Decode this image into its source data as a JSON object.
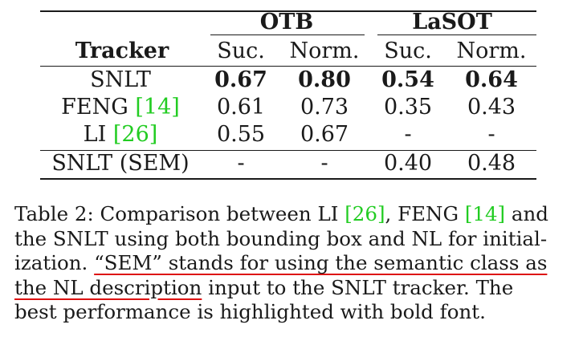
{
  "table": {
    "groups": [
      "OTB",
      "LaSOT"
    ],
    "col_header": "Tracker",
    "sub_headers": [
      "Suc.",
      "Norm.",
      "Suc.",
      "Norm."
    ],
    "rows": [
      {
        "tracker": "SNLT",
        "cite": "",
        "values": [
          "0.67",
          "0.80",
          "0.54",
          "0.64"
        ],
        "bold": true
      },
      {
        "tracker": "FENG",
        "cite": "[14]",
        "values": [
          "0.61",
          "0.73",
          "0.35",
          "0.43"
        ],
        "bold": false
      },
      {
        "tracker": "LI",
        "cite": "[26]",
        "values": [
          "0.55",
          "0.67",
          "-",
          "-"
        ],
        "bold": false
      },
      {
        "tracker": "SNLT (SEM)",
        "cite": "",
        "values": [
          "-",
          "-",
          "0.40",
          "0.48"
        ],
        "bold": false
      }
    ]
  },
  "caption": {
    "l1_a": "Table 2: Comparison between LI ",
    "l1_cite1": "[26]",
    "l1_b": ", FENG ",
    "l1_cite2": "[14]",
    "l1_c": " and",
    "l2": "the SNLT using both bounding box and NL for initial-",
    "l3_a": "ization. ",
    "l3_ul": "“SEM” stands for using the semantic class as",
    "l4_ul": "the NL description",
    "l4_b": " input to the SNLT tracker. The",
    "l5": "best performance is highlighted with bold font."
  }
}
